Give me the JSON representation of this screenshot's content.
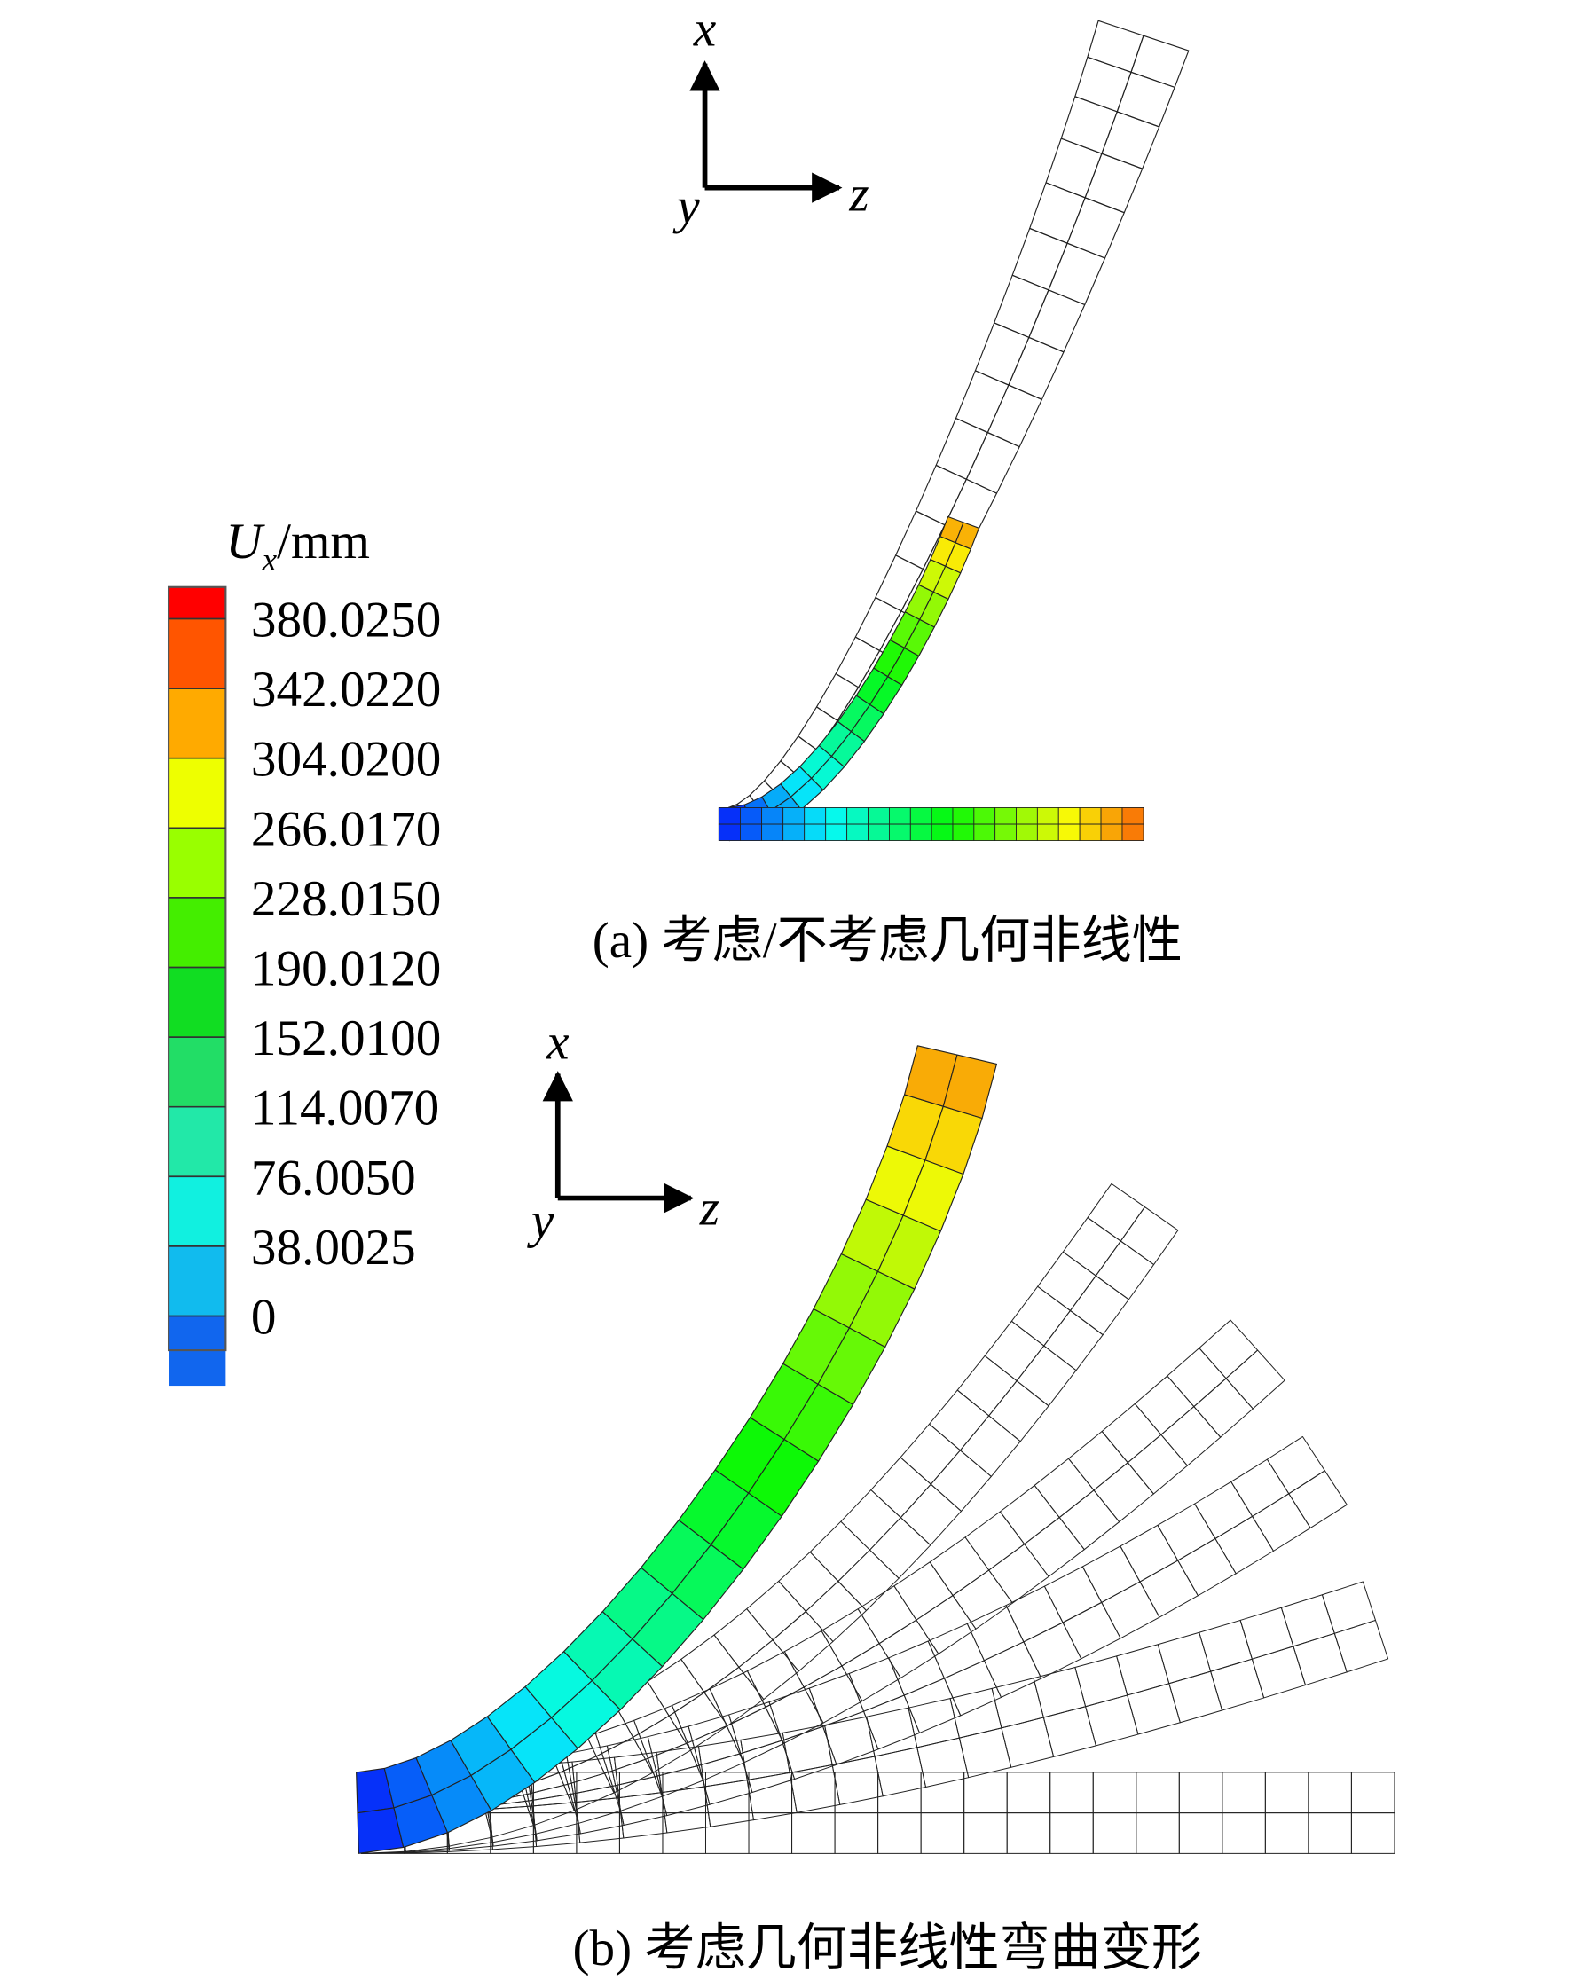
{
  "legend": {
    "title": {
      "symbol": "U",
      "subscript": "x",
      "unit": "/mm"
    },
    "labels": [
      "380.0250",
      "342.0220",
      "304.0200",
      "266.0170",
      "228.0150",
      "190.0120",
      "152.0100",
      "114.0070",
      "76.0050",
      "38.0025",
      "0"
    ],
    "zero_label": "0",
    "colors": [
      "#ff0000",
      "#ff5500",
      "#ffaa00",
      "#eeff00",
      "#99ff00",
      "#44ee00",
      "#11dd22",
      "#22dd66",
      "#22e8a8",
      "#11f0e0",
      "#11bbee",
      "#1166ee",
      "#0022ee"
    ]
  },
  "triad_a": {
    "x": "x",
    "y": "y",
    "z": "z"
  },
  "triad_b": {
    "x": "x",
    "y": "y",
    "z": "z"
  },
  "caption_a": "(a) 考虑/不考虑几何非线性",
  "caption_b": "(b) 考虑几何非线性弯曲变形"
}
